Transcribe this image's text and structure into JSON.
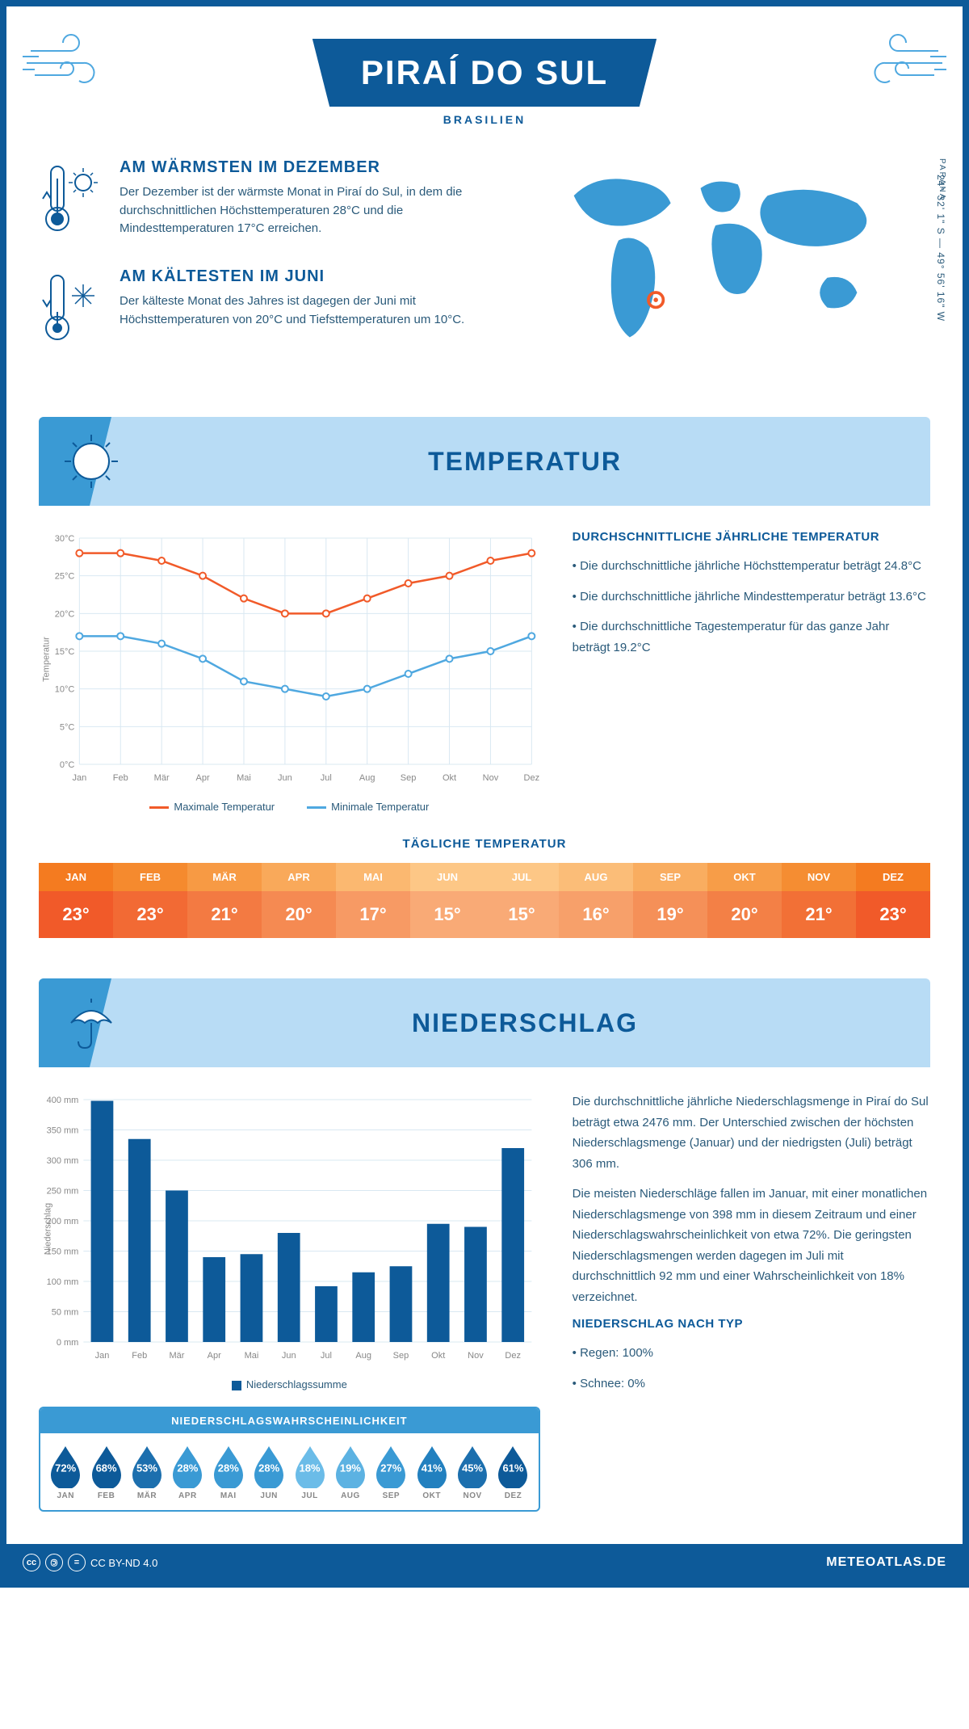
{
  "header": {
    "title": "PIRAÍ DO SUL",
    "subtitle": "BRASILIEN"
  },
  "location": {
    "region": "PARANA",
    "coords": "24° 32' 1\" S — 49° 56' 16\" W",
    "marker": {
      "cx_pct": 34,
      "cy_pct": 73
    }
  },
  "facts": {
    "warm": {
      "title": "AM WÄRMSTEN IM DEZEMBER",
      "text": "Der Dezember ist der wärmste Monat in Piraí do Sul, in dem die durchschnittlichen Höchsttemperaturen 28°C und die Mindesttemperaturen 17°C erreichen."
    },
    "cold": {
      "title": "AM KÄLTESTEN IM JUNI",
      "text": "Der kälteste Monat des Jahres ist dagegen der Juni mit Höchsttemperaturen von 20°C und Tiefsttemperaturen um 10°C."
    }
  },
  "sections": {
    "temperature": "TEMPERATUR",
    "precipitation": "NIEDERSCHLAG"
  },
  "months": [
    "Jan",
    "Feb",
    "Mär",
    "Apr",
    "Mai",
    "Jun",
    "Jul",
    "Aug",
    "Sep",
    "Okt",
    "Nov",
    "Dez"
  ],
  "months_upper": [
    "JAN",
    "FEB",
    "MÄR",
    "APR",
    "MAI",
    "JUN",
    "JUL",
    "AUG",
    "SEP",
    "OKT",
    "NOV",
    "DEZ"
  ],
  "temp_chart": {
    "type": "line",
    "y_label": "Temperatur",
    "ylim": [
      0,
      30
    ],
    "ytick_step": 5,
    "y_suffix": "°C",
    "max_series": {
      "label": "Maximale Temperatur",
      "color": "#f15a29",
      "values": [
        28,
        28,
        27,
        25,
        22,
        20,
        20,
        22,
        24,
        25,
        27,
        28
      ]
    },
    "min_series": {
      "label": "Minimale Temperatur",
      "color": "#4fa8e0",
      "values": [
        17,
        17,
        16,
        14,
        11,
        10,
        9,
        10,
        12,
        14,
        15,
        17
      ]
    },
    "grid_color": "#d9e8f2",
    "background": "#ffffff"
  },
  "temp_summary": {
    "title": "DURCHSCHNITTLICHE JÄHRLICHE TEMPERATUR",
    "b1": "Die durchschnittliche jährliche Höchsttemperatur beträgt 24.8°C",
    "b2": "Die durchschnittliche jährliche Mindesttemperatur beträgt 13.6°C",
    "b3": "Die durchschnittliche Tagestemperatur für das ganze Jahr beträgt 19.2°C"
  },
  "daily_temp": {
    "title": "TÄGLICHE TEMPERATUR",
    "values": [
      "23°",
      "23°",
      "21°",
      "20°",
      "17°",
      "15°",
      "15°",
      "16°",
      "19°",
      "20°",
      "21°",
      "23°"
    ],
    "header_colors": [
      "#f47b20",
      "#f58a2e",
      "#f79a44",
      "#f9a95a",
      "#fbb870",
      "#fdc786",
      "#fdc786",
      "#fbbd78",
      "#f9ad60",
      "#f79d48",
      "#f58d32",
      "#f47b20"
    ],
    "value_colors": [
      "#f15a29",
      "#f26a34",
      "#f37a42",
      "#f58a52",
      "#f79a64",
      "#f9aa76",
      "#f9aa76",
      "#f7a06a",
      "#f59058",
      "#f38046",
      "#f27036",
      "#f15a29"
    ]
  },
  "precip_chart": {
    "type": "bar",
    "y_label": "Niederschlag",
    "ylim": [
      0,
      400
    ],
    "ytick_step": 50,
    "y_suffix": " mm",
    "values": [
      398,
      335,
      250,
      140,
      145,
      180,
      92,
      115,
      125,
      195,
      190,
      320
    ],
    "bar_color": "#0d5a99",
    "legend": "Niederschlagssumme",
    "grid_color": "#d9e8f2"
  },
  "precip_text": {
    "p1": "Die durchschnittliche jährliche Niederschlagsmenge in Piraí do Sul beträgt etwa 2476 mm. Der Unterschied zwischen der höchsten Niederschlagsmenge (Januar) und der niedrigsten (Juli) beträgt 306 mm.",
    "p2": "Die meisten Niederschläge fallen im Januar, mit einer monatlichen Niederschlagsmenge von 398 mm in diesem Zeitraum und einer Niederschlagswahrscheinlichkeit von etwa 72%. Die geringsten Niederschlagsmengen werden dagegen im Juli mit durchschnittlich 92 mm und einer Wahrscheinlichkeit von 18% verzeichnet.",
    "type_title": "NIEDERSCHLAG NACH TYP",
    "type_b1": "Regen: 100%",
    "type_b2": "Schnee: 0%"
  },
  "precip_prob": {
    "title": "NIEDERSCHLAGSWAHRSCHEINLICHKEIT",
    "values": [
      "72%",
      "68%",
      "53%",
      "28%",
      "28%",
      "28%",
      "18%",
      "19%",
      "27%",
      "41%",
      "45%",
      "61%"
    ],
    "colors": [
      "#0d5a99",
      "#0d5a99",
      "#1c6fae",
      "#3a9ad4",
      "#3a9ad4",
      "#3a9ad4",
      "#6bbce8",
      "#5cb2e2",
      "#3a9ad4",
      "#2280bf",
      "#1c6fae",
      "#0d5a99"
    ]
  },
  "footer": {
    "license": "CC BY-ND 4.0",
    "site": "METEOATLAS.DE"
  },
  "colors": {
    "primary": "#0d5a99",
    "light_blue": "#b8dcf5",
    "accent_blue": "#3a9ad4"
  }
}
